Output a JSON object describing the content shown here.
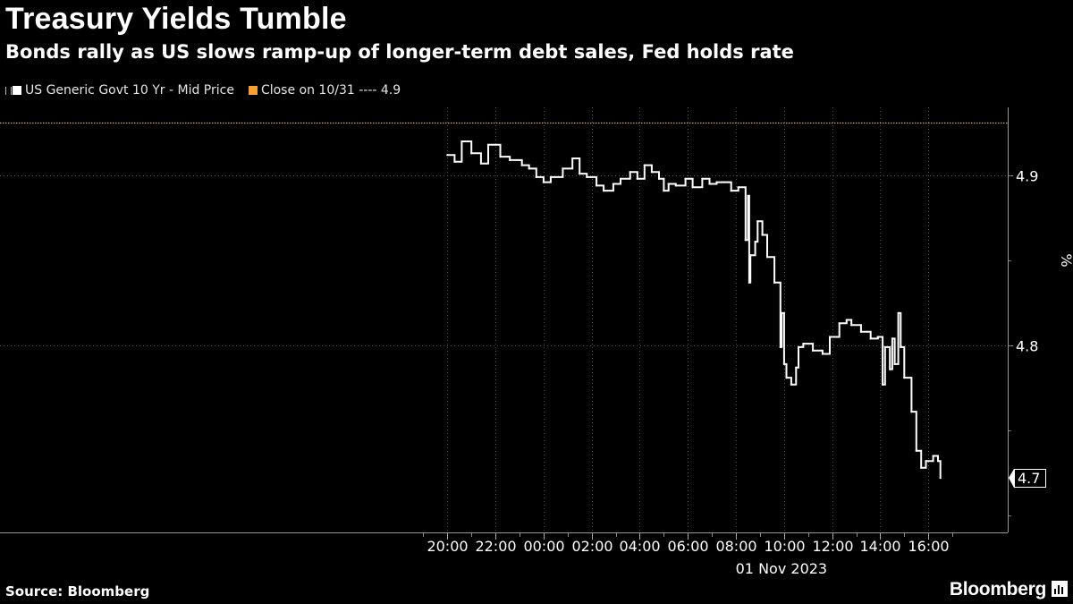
{
  "title": "Treasury Yields Tumble",
  "subtitle": "Bonds rally as US slows ramp-up of longer-term debt sales, Fed holds rate",
  "legend": {
    "series_label": "US Generic Govt 10 Yr - Mid Price",
    "reference_label": "Close on 10/31 ---- 4.9"
  },
  "source": "Source: Bloomberg",
  "brand": "Bloomberg",
  "colors": {
    "background": "#000000",
    "series": "#ffffff",
    "reference": "#f5a031",
    "grid": "#4a4a4a"
  },
  "chart_data": {
    "type": "line",
    "title": "Treasury Yields Tumble",
    "subtitle": "Bonds rally as US slows ramp-up of longer-term debt sales, Fed holds rate",
    "ylabel": "%",
    "date_label": "01 Nov 2023",
    "x_unit": "hours relative to 00:00 on 01 Nov 2023",
    "xlim": [
      -22.6,
      19.3
    ],
    "ylim": [
      4.69,
      4.94
    ],
    "x_ticks": [
      {
        "x": -4,
        "label": "20:00"
      },
      {
        "x": -2,
        "label": "22:00"
      },
      {
        "x": 0,
        "label": "00:00"
      },
      {
        "x": 2,
        "label": "02:00"
      },
      {
        "x": 4,
        "label": "04:00"
      },
      {
        "x": 6,
        "label": "06:00"
      },
      {
        "x": 8,
        "label": "08:00"
      },
      {
        "x": 10,
        "label": "10:00"
      },
      {
        "x": 12,
        "label": "12:00"
      },
      {
        "x": 14,
        "label": "14:00"
      },
      {
        "x": 16,
        "label": "16:00"
      }
    ],
    "y_ticks": [
      4.8,
      4.9
    ],
    "last_value_label": "4.7",
    "reference_line": {
      "label": "Close on 10/31",
      "value": 4.931
    },
    "grid": true,
    "legend_position": "top-left",
    "series": [
      {
        "name": "US Generic Govt 10 Yr - Mid Price",
        "x": [
          -4.0,
          -3.7,
          -3.4,
          -3.0,
          -2.6,
          -2.3,
          -1.8,
          -1.4,
          -0.9,
          -0.6,
          -0.3,
          0.0,
          0.3,
          0.8,
          1.2,
          1.5,
          1.8,
          2.2,
          2.5,
          2.9,
          3.2,
          3.6,
          3.9,
          4.2,
          4.5,
          4.8,
          5.0,
          5.2,
          5.5,
          5.9,
          6.2,
          6.6,
          6.9,
          7.2,
          7.5,
          7.8,
          8.1,
          8.4,
          8.5,
          8.55,
          8.6,
          8.8,
          8.9,
          9.1,
          9.3,
          9.6,
          9.85,
          9.9,
          10.0,
          10.1,
          10.3,
          10.5,
          10.6,
          10.8,
          11.2,
          11.6,
          11.9,
          12.3,
          12.6,
          12.8,
          13.2,
          13.6,
          13.9,
          14.1,
          14.2,
          14.4,
          14.5,
          14.6,
          14.75,
          14.85,
          15.0,
          15.3,
          15.5,
          15.7,
          15.9,
          16.2,
          16.4,
          16.5
        ],
        "y": [
          4.912,
          4.908,
          4.92,
          4.913,
          4.907,
          4.918,
          4.911,
          4.909,
          4.906,
          4.904,
          4.899,
          4.896,
          4.899,
          4.904,
          4.91,
          4.901,
          4.899,
          4.894,
          4.891,
          4.895,
          4.898,
          4.902,
          4.898,
          4.906,
          4.902,
          4.898,
          4.891,
          4.895,
          4.894,
          4.898,
          4.893,
          4.898,
          4.895,
          4.896,
          4.896,
          4.891,
          4.893,
          4.862,
          4.888,
          4.837,
          4.853,
          4.861,
          4.873,
          4.865,
          4.852,
          4.837,
          4.799,
          4.819,
          4.789,
          4.781,
          4.777,
          4.787,
          4.799,
          4.801,
          4.797,
          4.795,
          4.805,
          4.813,
          4.815,
          4.812,
          4.808,
          4.804,
          4.805,
          4.777,
          4.799,
          4.786,
          4.804,
          4.789,
          4.819,
          4.799,
          4.781,
          4.761,
          4.738,
          4.728,
          4.732,
          4.735,
          4.732,
          4.722
        ]
      }
    ]
  }
}
